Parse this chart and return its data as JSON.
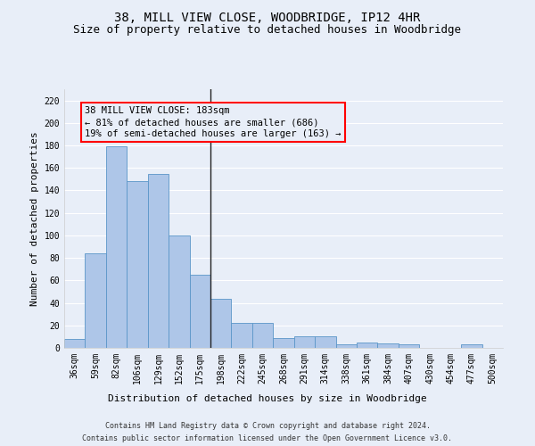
{
  "title": "38, MILL VIEW CLOSE, WOODBRIDGE, IP12 4HR",
  "subtitle": "Size of property relative to detached houses in Woodbridge",
  "xlabel": "Distribution of detached houses by size in Woodbridge",
  "ylabel": "Number of detached properties",
  "footnote1": "Contains HM Land Registry data © Crown copyright and database right 2024.",
  "footnote2": "Contains public sector information licensed under the Open Government Licence v3.0.",
  "annotation_title": "38 MILL VIEW CLOSE: 183sqm",
  "annotation_line1": "← 81% of detached houses are smaller (686)",
  "annotation_line2": "19% of semi-detached houses are larger (163) →",
  "bar_labels": [
    "36sqm",
    "59sqm",
    "82sqm",
    "106sqm",
    "129sqm",
    "152sqm",
    "175sqm",
    "198sqm",
    "222sqm",
    "245sqm",
    "268sqm",
    "291sqm",
    "314sqm",
    "338sqm",
    "361sqm",
    "384sqm",
    "407sqm",
    "430sqm",
    "454sqm",
    "477sqm",
    "500sqm"
  ],
  "bar_values": [
    8,
    84,
    179,
    148,
    155,
    100,
    65,
    44,
    22,
    22,
    9,
    10,
    10,
    3,
    5,
    4,
    3,
    0,
    0,
    3,
    0
  ],
  "bar_color": "#aec6e8",
  "bar_edge_color": "#5a96c8",
  "ylim": [
    0,
    230
  ],
  "yticks": [
    0,
    20,
    40,
    60,
    80,
    100,
    120,
    140,
    160,
    180,
    200,
    220
  ],
  "background_color": "#e8eef8",
  "grid_color": "#ffffff",
  "title_fontsize": 10,
  "subtitle_fontsize": 9,
  "axis_label_fontsize": 8,
  "tick_fontsize": 7,
  "annotation_fontsize": 7.5,
  "footnote_fontsize": 6
}
